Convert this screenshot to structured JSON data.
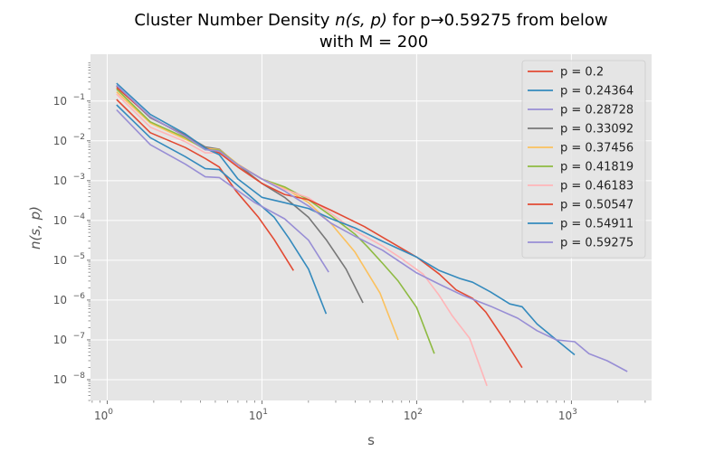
{
  "chart_data": {
    "type": "line",
    "title_line1": "Cluster Number Density",
    "title_line1_tail": "for p→0.59275 from below",
    "title_line2": "with M = 200",
    "title_math": "n(s, p)",
    "xlabel": "s",
    "ylabel": "n(s, p)",
    "xscale": "log",
    "yscale": "log",
    "xlim": [
      0.78,
      3300
    ],
    "ylim": [
      3e-09,
      1.5
    ],
    "x_ticks": [
      {
        "value": 1,
        "base": "10",
        "exp": "0"
      },
      {
        "value": 10,
        "base": "10",
        "exp": "1"
      },
      {
        "value": 100,
        "base": "10",
        "exp": "2"
      },
      {
        "value": 1000,
        "base": "10",
        "exp": "3"
      }
    ],
    "y_ticks": [
      {
        "value": 1e-08,
        "base": "10",
        "exp": "−8"
      },
      {
        "value": 1e-07,
        "base": "10",
        "exp": "−7"
      },
      {
        "value": 1e-06,
        "base": "10",
        "exp": "−6"
      },
      {
        "value": 1e-05,
        "base": "10",
        "exp": "−5"
      },
      {
        "value": 0.0001,
        "base": "10",
        "exp": "−4"
      },
      {
        "value": 0.001,
        "base": "10",
        "exp": "−3"
      },
      {
        "value": 0.01,
        "base": "10",
        "exp": "−2"
      },
      {
        "value": 0.1,
        "base": "10",
        "exp": "−1"
      }
    ],
    "grid": true,
    "legend_position": "top-right",
    "series": [
      {
        "name": "p = 0.2",
        "color": "#E24A33",
        "points": [
          [
            1.15,
            0.11
          ],
          [
            1.9,
            0.016
          ],
          [
            3.2,
            0.0068
          ],
          [
            4.3,
            0.0036
          ],
          [
            5.3,
            0.0022
          ],
          [
            6.8,
            0.00055
          ],
          [
            9.5,
            0.00012
          ],
          [
            12,
            3.3e-05
          ],
          [
            16,
            5.5e-06
          ]
        ]
      },
      {
        "name": "p = 0.24364",
        "color": "#348ABD",
        "points": [
          [
            1.15,
            0.08
          ],
          [
            1.9,
            0.012
          ],
          [
            3.2,
            0.004
          ],
          [
            4.3,
            0.002
          ],
          [
            5.3,
            0.0019
          ],
          [
            8,
            0.00048
          ],
          [
            12,
            0.00012
          ],
          [
            15,
            3.5e-05
          ],
          [
            20,
            6e-06
          ],
          [
            26,
            4.5e-07
          ]
        ]
      },
      {
        "name": "p = 0.28728",
        "color": "#988ED5",
        "points": [
          [
            1.15,
            0.06
          ],
          [
            1.9,
            0.008
          ],
          [
            3.2,
            0.0026
          ],
          [
            4.3,
            0.00125
          ],
          [
            5.3,
            0.0012
          ],
          [
            9,
            0.00028
          ],
          [
            14,
            0.00011
          ],
          [
            20,
            3.2e-05
          ],
          [
            27,
            5e-06
          ]
        ]
      },
      {
        "name": "p = 0.33092",
        "color": "#777777",
        "points": [
          [
            1.15,
            0.24
          ],
          [
            1.9,
            0.038
          ],
          [
            3.2,
            0.014
          ],
          [
            4.3,
            0.007
          ],
          [
            5.3,
            0.0062
          ],
          [
            7,
            0.0025
          ],
          [
            10,
            0.00085
          ],
          [
            14,
            0.00038
          ],
          [
            20,
            0.00012
          ],
          [
            26,
            3.3e-05
          ],
          [
            35,
            6e-06
          ],
          [
            45,
            8.5e-07
          ]
        ]
      },
      {
        "name": "p = 0.37456",
        "color": "#FBC15E",
        "points": [
          [
            1.15,
            0.17
          ],
          [
            1.9,
            0.028
          ],
          [
            3.2,
            0.011
          ],
          [
            4.3,
            0.0065
          ],
          [
            5.3,
            0.006
          ],
          [
            7,
            0.0026
          ],
          [
            10,
            0.0011
          ],
          [
            14,
            0.00065
          ],
          [
            20,
            0.00028
          ],
          [
            28,
            8.3e-05
          ],
          [
            40,
            1.6e-05
          ],
          [
            45,
            7.5e-06
          ],
          [
            58,
            1.5e-06
          ],
          [
            76,
            1e-07
          ]
        ]
      },
      {
        "name": "p = 0.41819",
        "color": "#8EBA42",
        "points": [
          [
            1.15,
            0.2
          ],
          [
            1.9,
            0.03
          ],
          [
            3.2,
            0.012
          ],
          [
            4.3,
            0.006
          ],
          [
            5.3,
            0.0058
          ],
          [
            7,
            0.0025
          ],
          [
            10,
            0.0011
          ],
          [
            14,
            0.0007
          ],
          [
            20,
            0.00033
          ],
          [
            28,
            0.00013
          ],
          [
            40,
            4.5e-05
          ],
          [
            48,
            2.2e-05
          ],
          [
            60,
            8.5e-06
          ],
          [
            76,
            3e-06
          ],
          [
            100,
            6.5e-07
          ],
          [
            130,
            4.5e-08
          ]
        ]
      },
      {
        "name": "p = 0.46183",
        "color": "#FFB5B8",
        "points": [
          [
            1.15,
            0.15
          ],
          [
            1.9,
            0.022
          ],
          [
            3.2,
            0.0095
          ],
          [
            4.3,
            0.005
          ],
          [
            5.3,
            0.005
          ],
          [
            7,
            0.0025
          ],
          [
            10,
            0.0011
          ],
          [
            14,
            0.0006
          ],
          [
            20,
            0.00037
          ],
          [
            28,
            0.00015
          ],
          [
            40,
            5.5e-05
          ],
          [
            60,
            2.3e-05
          ],
          [
            80,
            1.1e-05
          ],
          [
            110,
            4.5e-06
          ],
          [
            140,
            1.3e-06
          ],
          [
            170,
            4e-07
          ],
          [
            220,
            1.1e-07
          ],
          [
            285,
            7e-09
          ]
        ]
      },
      {
        "name": "p = 0.50547",
        "color": "#E24A33",
        "points": [
          [
            1.15,
            0.22
          ],
          [
            1.9,
            0.04
          ],
          [
            3.2,
            0.013
          ],
          [
            4.3,
            0.0065
          ],
          [
            5.3,
            0.005
          ],
          [
            7,
            0.0022
          ],
          [
            10,
            0.00085
          ],
          [
            14,
            0.00045
          ],
          [
            20,
            0.00033
          ],
          [
            28,
            0.00018
          ],
          [
            46,
            7e-05
          ],
          [
            64,
            3.3e-05
          ],
          [
            100,
            1.2e-05
          ],
          [
            140,
            4.5e-06
          ],
          [
            180,
            1.8e-06
          ],
          [
            230,
            1.1e-06
          ],
          [
            280,
            5e-07
          ],
          [
            370,
            1e-07
          ],
          [
            480,
            2e-08
          ]
        ]
      },
      {
        "name": "p = 0.54911",
        "color": "#348ABD",
        "points": [
          [
            1.15,
            0.28
          ],
          [
            1.9,
            0.046
          ],
          [
            3.2,
            0.015
          ],
          [
            4.3,
            0.0065
          ],
          [
            5.3,
            0.0045
          ],
          [
            7,
            0.0011
          ],
          [
            10,
            0.00038
          ],
          [
            14,
            0.00028
          ],
          [
            20,
            0.0002
          ],
          [
            28,
            0.00011
          ],
          [
            40,
            6.5e-05
          ],
          [
            60,
            3e-05
          ],
          [
            100,
            1.2e-05
          ],
          [
            140,
            5.5e-06
          ],
          [
            190,
            3.5e-06
          ],
          [
            230,
            2.8e-06
          ],
          [
            300,
            1.6e-06
          ],
          [
            400,
            8e-07
          ],
          [
            480,
            6.8e-07
          ],
          [
            600,
            2.5e-07
          ],
          [
            800,
            1e-07
          ],
          [
            1050,
            4.2e-08
          ]
        ]
      },
      {
        "name": "p = 0.59275",
        "color": "#988ED5",
        "points": [
          [
            1.15,
            0.25
          ],
          [
            1.9,
            0.04
          ],
          [
            3.2,
            0.013
          ],
          [
            4.3,
            0.006
          ],
          [
            5.3,
            0.0055
          ],
          [
            7,
            0.0025
          ],
          [
            10,
            0.0011
          ],
          [
            14,
            0.00055
          ],
          [
            20,
            0.00023
          ],
          [
            28,
            8.5e-05
          ],
          [
            40,
            4e-05
          ],
          [
            60,
            1.8e-05
          ],
          [
            100,
            4.8e-06
          ],
          [
            140,
            2.5e-06
          ],
          [
            200,
            1.3e-06
          ],
          [
            300,
            7e-07
          ],
          [
            450,
            3.5e-07
          ],
          [
            600,
            1.7e-07
          ],
          [
            800,
            1e-07
          ],
          [
            1050,
            9e-08
          ],
          [
            1300,
            4.5e-08
          ],
          [
            1700,
            3e-08
          ],
          [
            2300,
            1.6e-08
          ]
        ]
      }
    ]
  }
}
